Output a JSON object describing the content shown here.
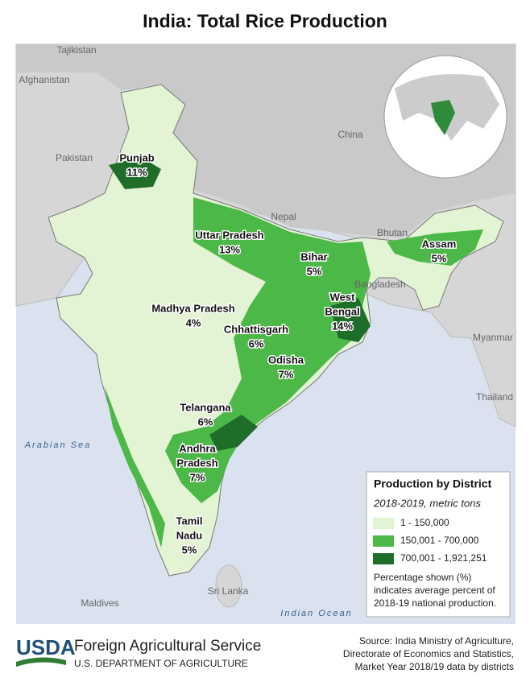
{
  "title": "India: Total Rice Production",
  "places": [
    "Tajikistan",
    "Afghanistan",
    "Pakistan",
    "China",
    "Nepal",
    "Bhutan",
    "Bangladesh",
    "Myanmar",
    "Thailand",
    "Arabian Sea",
    "Maldives",
    "Sri Lanka",
    "Indian Ocean"
  ],
  "states": [
    {
      "lines": [
        "Punjab",
        "11%"
      ]
    },
    {
      "lines": [
        "Uttar Pradesh",
        "13%"
      ]
    },
    {
      "lines": [
        "Bihar",
        "5%"
      ]
    },
    {
      "lines": [
        "Assam",
        "5%"
      ]
    },
    {
      "lines": [
        "West",
        "Bengal",
        "14%"
      ]
    },
    {
      "lines": [
        "Madhya Pradesh",
        "4%"
      ]
    },
    {
      "lines": [
        "Chhattisgarh",
        "6%"
      ]
    },
    {
      "lines": [
        "Odisha",
        "7%"
      ]
    },
    {
      "lines": [
        "Telangana",
        "6%"
      ]
    },
    {
      "lines": [
        "Andhra",
        "Pradesh",
        "7%"
      ]
    },
    {
      "lines": [
        "Tamil",
        "Nadu",
        "5%"
      ]
    }
  ],
  "legend": {
    "title": "Production by District",
    "subtitle": "2018-2019, metric tons",
    "items": [
      {
        "label": "1 - 150,000",
        "color": "#e2f4d4"
      },
      {
        "label": "150,001 - 700,000",
        "color": "#4cb848"
      },
      {
        "label": "700,001 - 1,921,251",
        "color": "#1e6e2a"
      }
    ],
    "note": [
      "Percentage shown (%)",
      "indicates average percent of",
      "2018-19 national production."
    ]
  },
  "footer": {
    "logo": "USDA",
    "agency": "Foreign Agricultural Service",
    "department": "U.S. DEPARTMENT OF AGRICULTURE",
    "source": [
      "Source: India Ministry of Agriculture,",
      "Directorate of Economics and Statistics,",
      "Market Year 2018/19 data by districts"
    ]
  }
}
